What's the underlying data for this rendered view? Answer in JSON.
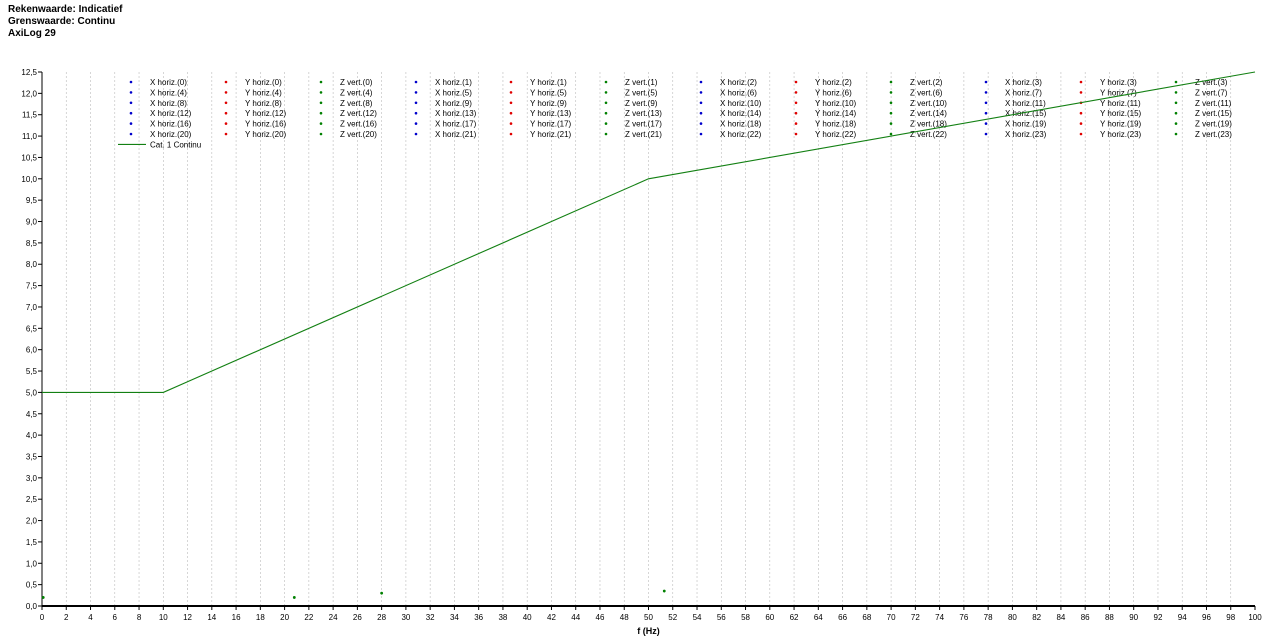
{
  "header": {
    "line1": "Rekenwaarde: Indicatief",
    "line2": "Grenswaarde: Continu",
    "line3": "AxiLog 29"
  },
  "colors": {
    "x_series": "#0000cc",
    "y_series": "#e00000",
    "z_series": "#008000",
    "limit_line": "#138013",
    "grid": "#bbbbbb"
  },
  "chart_data": {
    "type": "line",
    "xlabel": "f (Hz)",
    "ylabel": "",
    "xlim": [
      0,
      100
    ],
    "ylim": [
      0,
      12.5
    ],
    "xticks": [
      "0",
      "2",
      "4",
      "6",
      "8",
      "10",
      "12",
      "14",
      "16",
      "18",
      "20",
      "22",
      "24",
      "26",
      "28",
      "30",
      "32",
      "34",
      "36",
      "38",
      "40",
      "42",
      "44",
      "46",
      "48",
      "50",
      "52",
      "54",
      "56",
      "58",
      "60",
      "62",
      "64",
      "66",
      "68",
      "70",
      "72",
      "74",
      "76",
      "78",
      "80",
      "82",
      "84",
      "86",
      "88",
      "90",
      "92",
      "94",
      "96",
      "98",
      "100"
    ],
    "yticks": [
      "0,0",
      "0,5",
      "1,0",
      "1,5",
      "2,0",
      "2,5",
      "3,0",
      "3,5",
      "4,0",
      "4,5",
      "5,0",
      "5,5",
      "6,0",
      "6,5",
      "7,0",
      "7,5",
      "8,0",
      "8,5",
      "9,0",
      "9,5",
      "10,0",
      "10,5",
      "11,0",
      "11,5",
      "12,0",
      "12,5"
    ],
    "grid": true,
    "legend_position": "top",
    "legend_rows": [
      [
        "X horiz.(0)",
        "Y horiz.(0)",
        "Z vert.(0)",
        "X horiz.(1)",
        "Y horiz.(1)",
        "Z vert.(1)",
        "X horiz.(2)",
        "Y horiz.(2)",
        "Z vert.(2)",
        "X horiz.(3)",
        "Y horiz.(3)",
        "Z vert.(3)"
      ],
      [
        "X horiz.(4)",
        "Y horiz.(4)",
        "Z vert.(4)",
        "X horiz.(5)",
        "Y horiz.(5)",
        "Z vert.(5)",
        "X horiz.(6)",
        "Y horiz.(6)",
        "Z vert.(6)",
        "X horiz.(7)",
        "Y horiz.(7)",
        "Z vert.(7)"
      ],
      [
        "X horiz.(8)",
        "Y horiz.(8)",
        "Z vert.(8)",
        "X horiz.(9)",
        "Y horiz.(9)",
        "Z vert.(9)",
        "X horiz.(10)",
        "Y horiz.(10)",
        "Z vert.(10)",
        "X horiz.(11)",
        "Y horiz.(11)",
        "Z vert.(11)"
      ],
      [
        "X horiz.(12)",
        "Y horiz.(12)",
        "Z vert.(12)",
        "X horiz.(13)",
        "Y horiz.(13)",
        "Z vert.(13)",
        "X horiz.(14)",
        "Y horiz.(14)",
        "Z vert.(14)",
        "X horiz.(15)",
        "Y horiz.(15)",
        "Z vert.(15)"
      ],
      [
        "X horiz.(16)",
        "Y horiz.(16)",
        "Z vert.(16)",
        "X horiz.(17)",
        "Y horiz.(17)",
        "Z vert.(17)",
        "X horiz.(18)",
        "Y horiz.(18)",
        "Z vert.(18)",
        "X horiz.(19)",
        "Y horiz.(19)",
        "Z vert.(19)"
      ],
      [
        "X horiz.(20)",
        "Y horiz.(20)",
        "Z vert.(20)",
        "X horiz.(21)",
        "Y horiz.(21)",
        "Z vert.(21)",
        "X horiz.(22)",
        "Y horiz.(22)",
        "Z vert.(22)",
        "X horiz.(23)",
        "Y horiz.(23)",
        "Z vert.(23)"
      ]
    ],
    "series": [
      {
        "name": "Cat. 1 Continu",
        "kind": "line",
        "x": [
          0,
          10,
          50,
          100
        ],
        "y": [
          5.0,
          5.0,
          10.0,
          12.5
        ]
      },
      {
        "name": "Z vert.",
        "kind": "scatter",
        "x": [
          0.1,
          20.8,
          28.0,
          51.3
        ],
        "y": [
          0.2,
          0.2,
          0.3,
          0.35
        ]
      }
    ]
  }
}
